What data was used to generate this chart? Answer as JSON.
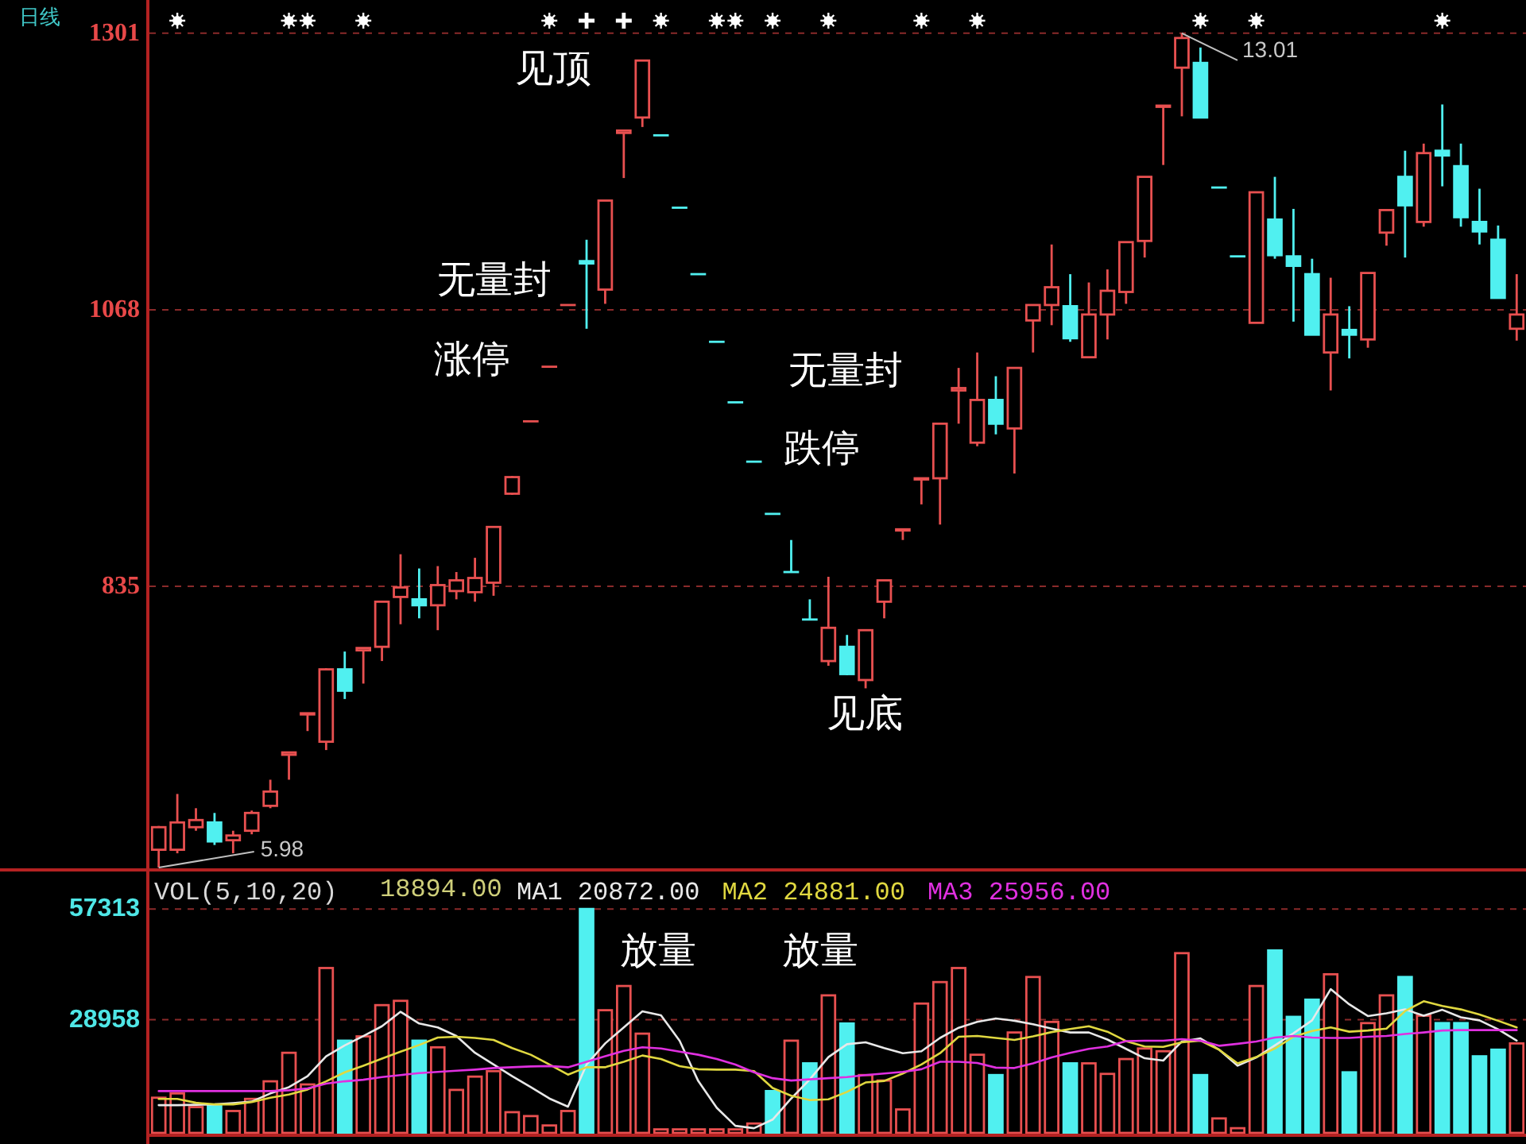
{
  "chart_data": [
    {
      "type": "candlestick",
      "title": "日线",
      "categories": [
        null,
        null,
        null,
        null,
        null,
        null,
        null,
        null,
        null,
        null,
        null,
        null,
        null,
        null,
        null,
        null,
        null,
        null,
        null,
        null,
        null,
        null,
        null,
        null,
        null,
        null,
        null,
        null,
        null,
        null,
        null,
        null,
        null,
        null,
        null,
        null,
        null,
        null,
        null,
        null,
        null,
        null,
        null,
        null,
        null,
        null,
        null,
        null,
        null,
        null,
        null,
        null,
        null,
        null,
        null,
        null,
        null,
        null,
        null,
        null,
        null,
        null,
        null,
        null,
        null,
        null,
        null,
        null,
        null,
        null,
        null,
        null,
        null,
        null
      ],
      "ohlc": [
        [
          613,
          633,
          598,
          632
        ],
        [
          613,
          660,
          610,
          636
        ],
        [
          632,
          648,
          629,
          638
        ],
        [
          636,
          644,
          617,
          620
        ],
        [
          621,
          629,
          610,
          625
        ],
        [
          629,
          646,
          626,
          644
        ],
        [
          650,
          672,
          648,
          662
        ],
        [
          693,
          695,
          672,
          695
        ],
        [
          727,
          728,
          713,
          728
        ],
        [
          704,
          766,
          697,
          765
        ],
        [
          765,
          780,
          740,
          747
        ],
        [
          781,
          783,
          753,
          783
        ],
        [
          784,
          822,
          772,
          822
        ],
        [
          826,
          862,
          803,
          834
        ],
        [
          824,
          850,
          808,
          819
        ],
        [
          819,
          852,
          798,
          836
        ],
        [
          831,
          847,
          824,
          840
        ],
        [
          830,
          859,
          822,
          842
        ],
        [
          838,
          885,
          827,
          885
        ],
        [
          913,
          928,
          912,
          927
        ],
        [
          974,
          974,
          974,
          974
        ],
        [
          1020,
          1020,
          1020,
          1020
        ],
        [
          1072,
          1072,
          1072,
          1072
        ],
        [
          1109,
          1127,
          1052,
          1107
        ],
        [
          1085,
          1160,
          1073,
          1160
        ],
        [
          1217,
          1219,
          1179,
          1219
        ],
        [
          1230,
          1278,
          1222,
          1278
        ],
        [
          1215,
          1215,
          1215,
          1215
        ],
        [
          1154,
          1154,
          1154,
          1154
        ],
        [
          1098,
          1098,
          1098,
          1098
        ],
        [
          1041,
          1041,
          1041,
          1041
        ],
        [
          990,
          990,
          990,
          990
        ],
        [
          940,
          940,
          940,
          940
        ],
        [
          896,
          896,
          896,
          896
        ],
        [
          847,
          874,
          847,
          847
        ],
        [
          807,
          824,
          807,
          807
        ],
        [
          772,
          843,
          768,
          800
        ],
        [
          784,
          794,
          760,
          761
        ],
        [
          756,
          798,
          749,
          798
        ],
        [
          822,
          840,
          808,
          840
        ],
        [
          882,
          883,
          874,
          883
        ],
        [
          925,
          926,
          904,
          926
        ],
        [
          926,
          972,
          887,
          972
        ],
        [
          1000,
          1019,
          972,
          1002
        ],
        [
          956,
          1032,
          953,
          992
        ],
        [
          992,
          1012,
          963,
          972
        ],
        [
          968,
          1019,
          930,
          1019
        ],
        [
          1059,
          1072,
          1032,
          1072
        ],
        [
          1072,
          1123,
          1055,
          1087
        ],
        [
          1071,
          1098,
          1041,
          1044
        ],
        [
          1028,
          1091,
          1028,
          1064
        ],
        [
          1064,
          1102,
          1043,
          1084
        ],
        [
          1083,
          1125,
          1073,
          1125
        ],
        [
          1126,
          1180,
          1112,
          1180
        ],
        [
          1239,
          1240,
          1190,
          1240
        ],
        [
          1272,
          1301,
          1231,
          1297
        ],
        [
          1276,
          1289,
          1230,
          1230
        ],
        [
          1171,
          1171,
          1171,
          1171
        ],
        [
          1113,
          1113,
          1113,
          1113
        ],
        [
          1057,
          1167,
          1057,
          1167
        ],
        [
          1144,
          1180,
          1111,
          1114
        ],
        [
          1113,
          1153,
          1058,
          1105
        ],
        [
          1098,
          1111,
          1047,
          1047
        ],
        [
          1032,
          1095,
          1000,
          1064
        ],
        [
          1051,
          1071,
          1027,
          1047
        ],
        [
          1043,
          1099,
          1036,
          1099
        ],
        [
          1133,
          1152,
          1122,
          1152
        ],
        [
          1180,
          1202,
          1112,
          1156
        ],
        [
          1142,
          1208,
          1138,
          1200
        ],
        [
          1202,
          1241,
          1172,
          1198
        ],
        [
          1189,
          1208,
          1138,
          1146
        ],
        [
          1142,
          1170,
          1123,
          1134
        ],
        [
          1127,
          1139,
          1078,
          1078
        ],
        [
          1052,
          1098,
          1042,
          1064
        ]
      ],
      "colors": [
        "#e85050",
        "#e85050",
        "#e85050",
        "#50f0f0",
        "#e85050",
        "#e85050",
        "#e85050",
        "#e85050",
        "#e85050",
        "#e85050",
        "#50f0f0",
        "#e85050",
        "#e85050",
        "#e85050",
        "#50f0f0",
        "#e85050",
        "#e85050",
        "#e85050",
        "#e85050",
        "#e85050",
        "#e85050",
        "#e85050",
        "#e85050",
        "#50f0f0",
        "#e85050",
        "#e85050",
        "#e85050",
        "#50f0f0",
        "#50f0f0",
        "#50f0f0",
        "#50f0f0",
        "#50f0f0",
        "#50f0f0",
        "#50f0f0",
        "#50f0f0",
        "#50f0f0",
        "#e85050",
        "#50f0f0",
        "#e85050",
        "#e85050",
        "#e85050",
        "#e85050",
        "#e85050",
        "#e85050",
        "#e85050",
        "#50f0f0",
        "#e85050",
        "#e85050",
        "#e85050",
        "#50f0f0",
        "#e85050",
        "#e85050",
        "#e85050",
        "#e85050",
        "#e85050",
        "#e85050",
        "#50f0f0",
        "#50f0f0",
        "#50f0f0",
        "#e85050",
        "#50f0f0",
        "#50f0f0",
        "#50f0f0",
        "#e85050",
        "#50f0f0",
        "#e85050",
        "#e85050",
        "#50f0f0",
        "#e85050",
        "#50f0f0",
        "#50f0f0",
        "#50f0f0",
        "#50f0f0",
        "#e85050"
      ],
      "ylim": [
        598,
        1325
      ],
      "yticks": [
        835,
        1068,
        1301
      ],
      "grid": "y",
      "annotations": [
        "13.01",
        "5.98",
        "见顶",
        "无量封",
        "涨停",
        "无量封",
        "跌停",
        "见底"
      ]
    },
    {
      "type": "bar",
      "title": "VOL(5,10,20)",
      "categories": [
        null,
        null,
        null,
        null,
        null,
        null,
        null,
        null,
        null,
        null,
        null,
        null,
        null,
        null,
        null,
        null,
        null,
        null,
        null,
        null,
        null,
        null,
        null,
        null,
        null,
        null,
        null,
        null,
        null,
        null,
        null,
        null,
        null,
        null,
        null,
        null,
        null,
        null,
        null,
        null,
        null,
        null,
        null,
        null,
        null,
        null,
        null,
        null,
        null,
        null,
        null,
        null,
        null,
        null,
        null,
        null,
        null,
        null,
        null,
        null,
        null,
        null,
        null,
        null,
        null,
        null,
        null,
        null,
        null,
        null,
        null,
        null,
        null,
        null
      ],
      "series": [
        {
          "type": "bar",
          "values": [
            9000,
            10100,
            6600,
            6900,
            5600,
            8700,
            13200,
            20500,
            12400,
            42200,
            23600,
            24700,
            32700,
            33800,
            23600,
            21900,
            11000,
            14400,
            15800,
            5300,
            4300,
            1900,
            5600,
            57313,
            31400,
            37600,
            25400,
            900,
            900,
            900,
            900,
            900,
            2400,
            10700,
            23600,
            17800,
            35200,
            28000,
            14800,
            13400,
            6000,
            33100,
            38600,
            42200,
            20000,
            14800,
            25700,
            39900,
            28400,
            17800,
            17800,
            15100,
            18900,
            21600,
            20900,
            46000,
            14800,
            3700,
            1200,
            37600,
            46700,
            29700,
            34100,
            40600,
            15500,
            28100,
            35200,
            39900,
            30000,
            28100,
            28100,
            19600,
            21300,
            22900
          ],
          "colors": [
            "#e85050",
            "#e85050",
            "#e85050",
            "#50f0f0",
            "#e85050",
            "#e85050",
            "#e85050",
            "#e85050",
            "#e85050",
            "#e85050",
            "#50f0f0",
            "#e85050",
            "#e85050",
            "#e85050",
            "#50f0f0",
            "#e85050",
            "#e85050",
            "#e85050",
            "#e85050",
            "#e85050",
            "#e85050",
            "#e85050",
            "#e85050",
            "#50f0f0",
            "#e85050",
            "#e85050",
            "#e85050",
            "#e85050",
            "#e85050",
            "#e85050",
            "#e85050",
            "#e85050",
            "#e85050",
            "#50f0f0",
            "#e85050",
            "#50f0f0",
            "#e85050",
            "#50f0f0",
            "#e85050",
            "#e85050",
            "#e85050",
            "#e85050",
            "#e85050",
            "#e85050",
            "#e85050",
            "#50f0f0",
            "#e85050",
            "#e85050",
            "#e85050",
            "#50f0f0",
            "#e85050",
            "#e85050",
            "#e85050",
            "#e85050",
            "#e85050",
            "#e85050",
            "#50f0f0",
            "#e85050",
            "#e85050",
            "#e85050",
            "#50f0f0",
            "#50f0f0",
            "#50f0f0",
            "#e85050",
            "#50f0f0",
            "#e85050",
            "#e85050",
            "#50f0f0",
            "#e85050",
            "#50f0f0",
            "#50f0f0",
            "#50f0f0",
            "#50f0f0",
            "#e85050"
          ]
        },
        {
          "type": "line",
          "name": "MA1 20872.00",
          "color": "#e8e8e8",
          "values": [
            7100,
            7100,
            7200,
            7300,
            7600,
            8000,
            10100,
            11700,
            14500,
            19600,
            22400,
            24800,
            27300,
            31000,
            28000,
            27000,
            24800,
            20500,
            17500,
            14500,
            11700,
            8800,
            6700,
            17500,
            22900,
            27000,
            31100,
            30100,
            23600,
            13300,
            6400,
            1800,
            1200,
            3400,
            8800,
            13700,
            19400,
            22700,
            23200,
            21700,
            20400,
            20900,
            24300,
            26900,
            28400,
            29300,
            28700,
            27800,
            26700,
            25700,
            25700,
            23900,
            21500,
            19100,
            18500,
            23400,
            24200,
            21300,
            17200,
            19300,
            22400,
            25500,
            28800,
            36800,
            32900,
            29900,
            30600,
            31600,
            30000,
            31500,
            29600,
            28800,
            26500,
            23600
          ]
        },
        {
          "type": "line",
          "name": "MA2 24881.00",
          "color": "#e0d840",
          "values": [
            8700,
            8700,
            7700,
            7300,
            7300,
            7900,
            9000,
            9800,
            11100,
            13200,
            15500,
            17200,
            19000,
            20800,
            22500,
            24400,
            24600,
            24300,
            23800,
            21700,
            20000,
            17500,
            14900,
            16800,
            16800,
            18200,
            19800,
            18900,
            17100,
            16300,
            16200,
            16200,
            15800,
            11500,
            9500,
            8400,
            8600,
            10500,
            12900,
            13300,
            15200,
            17500,
            20400,
            24600,
            24800,
            24300,
            23800,
            24700,
            25800,
            26600,
            27300,
            25900,
            23500,
            22100,
            22000,
            23200,
            23600,
            21300,
            17800,
            19400,
            21600,
            24600,
            26100,
            27000,
            25900,
            26200,
            26700,
            31200,
            33700,
            32500,
            31600,
            30300,
            28700,
            27000
          ]
        },
        {
          "type": "line",
          "name": "MA3 25956.00",
          "color": "#e030e0",
          "values": [
            10700,
            10700,
            10700,
            10700,
            10700,
            10700,
            10700,
            10900,
            11400,
            12600,
            13200,
            13600,
            14300,
            14800,
            15300,
            15600,
            15900,
            16200,
            16600,
            16800,
            17000,
            17100,
            16800,
            18200,
            19600,
            21000,
            21900,
            21600,
            20800,
            20000,
            18900,
            17500,
            15500,
            14000,
            13400,
            13700,
            14000,
            14300,
            14800,
            15200,
            15600,
            16300,
            18200,
            18200,
            17900,
            16700,
            16600,
            17800,
            19300,
            20500,
            21500,
            22100,
            23500,
            23600,
            23600,
            24000,
            23600,
            22300,
            22800,
            23400,
            24400,
            24800,
            24400,
            24300,
            24300,
            24600,
            24800,
            25300,
            25700,
            26200,
            26300,
            26300,
            26300,
            26300
          ]
        }
      ],
      "ylim": [
        0,
        66700
      ],
      "yticks": [
        28958,
        57313
      ],
      "grid": "y",
      "legend": "top left",
      "annotations": [
        "18894.00",
        "放量",
        "放量"
      ]
    }
  ]
}
